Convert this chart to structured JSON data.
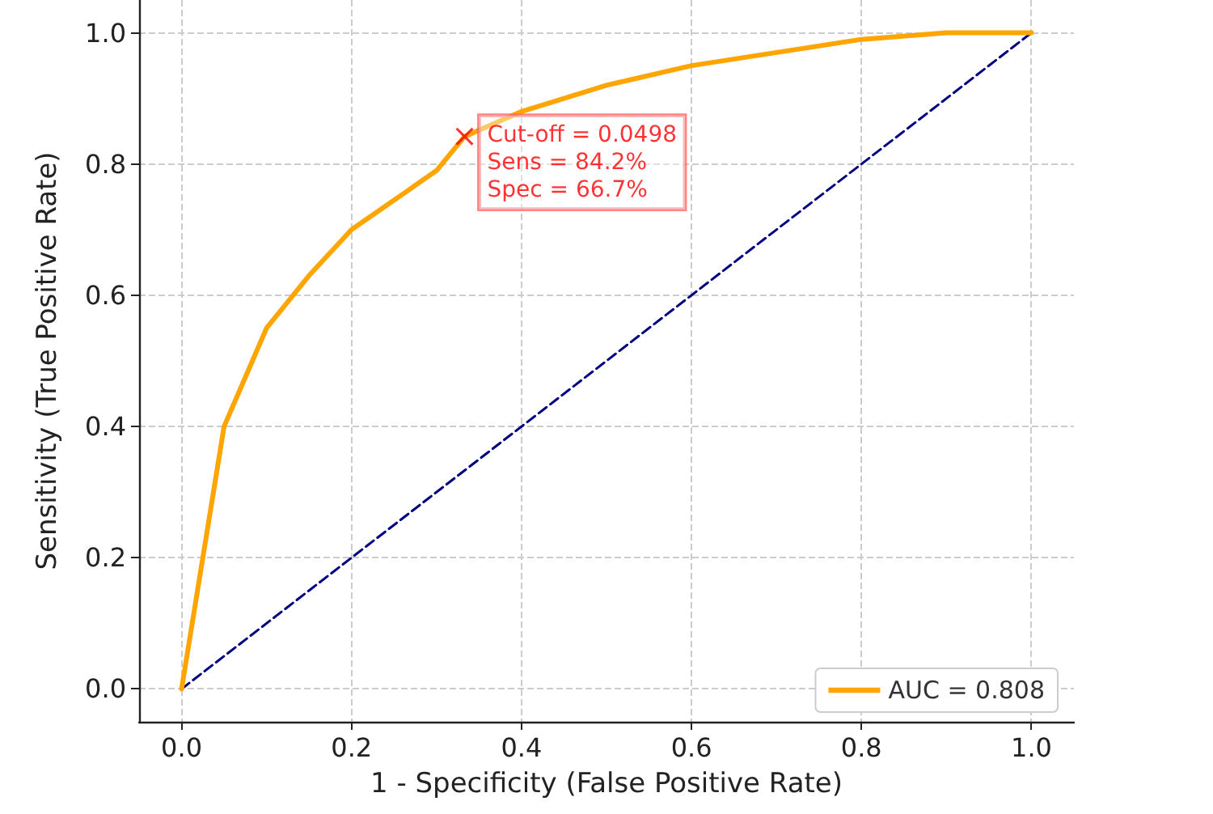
{
  "chart_data": {
    "type": "line",
    "xlabel": "1 - Specificity (False Positive Rate)",
    "ylabel": "Sensitivity (True Positive Rate)",
    "xlim": [
      -0.05,
      1.05
    ],
    "ylim": [
      -0.05,
      1.05
    ],
    "xticks": [
      {
        "value": 0,
        "label": "0.0"
      },
      {
        "value": 0.2,
        "label": "0.2"
      },
      {
        "value": 0.4,
        "label": "0.4"
      },
      {
        "value": 0.6,
        "label": "0.6"
      },
      {
        "value": 0.8,
        "label": "0.8"
      },
      {
        "value": 1,
        "label": "1.0"
      }
    ],
    "yticks": [
      {
        "value": 0,
        "label": "0.0"
      },
      {
        "value": 0.2,
        "label": "0.2"
      },
      {
        "value": 0.4,
        "label": "0.4"
      },
      {
        "value": 0.6,
        "label": "0.6"
      },
      {
        "value": 0.8,
        "label": "0.8"
      },
      {
        "value": 1,
        "label": "1.0"
      }
    ],
    "grid": true,
    "legend": "bottom right",
    "series": [
      {
        "name": "AUC = 0.808",
        "color": "#ffa500",
        "line_style": "solid",
        "marker": "none",
        "x": [
          0,
          0.05,
          0.1,
          0.15,
          0.2,
          0.3,
          0.333,
          0.4,
          0.5,
          0.6,
          0.7,
          0.8,
          0.9,
          1.0
        ],
        "values": [
          0,
          0.4,
          0.55,
          0.63,
          0.7,
          0.79,
          0.842,
          0.88,
          0.92,
          0.95,
          0.97,
          0.99,
          1.0,
          1.0
        ]
      },
      {
        "color": "#000080",
        "line_style": "dashed",
        "marker": "none",
        "x": [
          0,
          1
        ],
        "values": [
          0,
          1
        ]
      },
      {
        "type": "scatter",
        "color": "#ff0000",
        "marker": "cross",
        "x": [
          0.333
        ],
        "values": [
          0.842
        ]
      }
    ],
    "annotations": [
      {
        "text": "Cut-off = 0.0498\nSens = 84.2%\nSpec = 66.7%",
        "x": 0.333,
        "y": 0.842
      }
    ]
  }
}
